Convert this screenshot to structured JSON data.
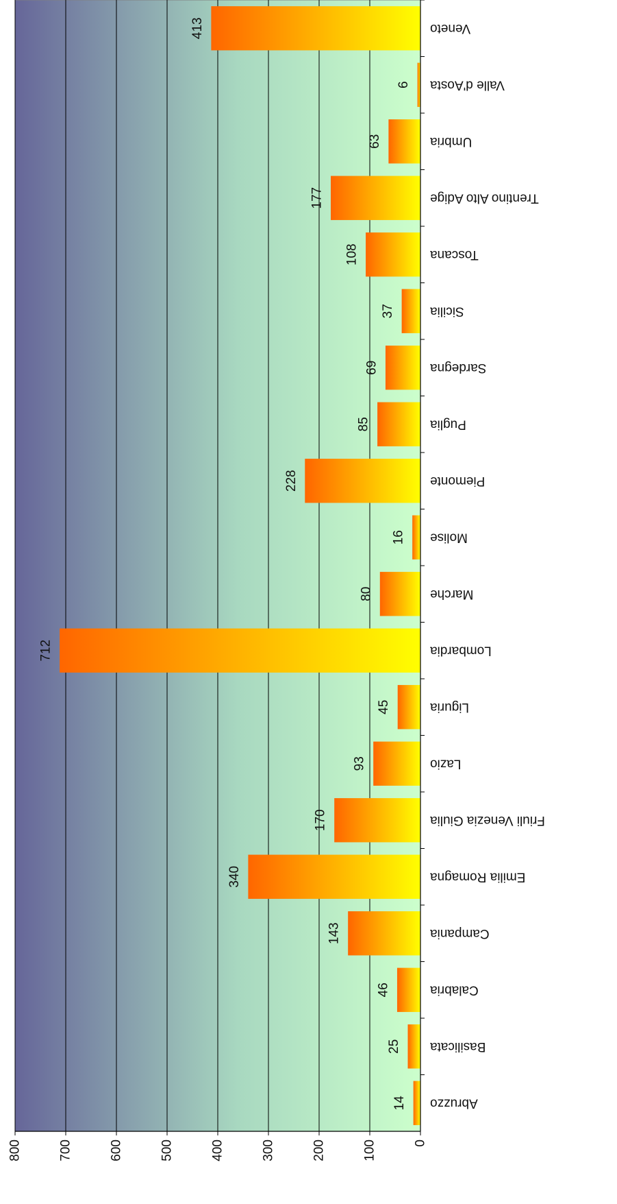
{
  "chart_data": {
    "type": "bar",
    "orientation": "rotated-180-vertical-labels",
    "title": "",
    "xlabel": "",
    "ylabel": "",
    "ylim": [
      0,
      800
    ],
    "yticks": [
      0,
      100,
      200,
      300,
      400,
      500,
      600,
      700,
      800
    ],
    "grid": true,
    "legend": "none",
    "categories": [
      "Abruzzo",
      "Basilicata",
      "Calabria",
      "Campania",
      "Emilia Romagna",
      "Friuli Venezia Giulia",
      "Lazio",
      "Liguria",
      "Lombardia",
      "Marche",
      "Molise",
      "Piemonte",
      "Puglia",
      "Sardegna",
      "Sicilia",
      "Toscana",
      "Trentino Alto Adige",
      "Umbria",
      "Valle d'Aosta",
      "Veneto"
    ],
    "values": [
      14,
      25,
      46,
      143,
      340,
      170,
      93,
      45,
      712,
      80,
      16,
      228,
      85,
      69,
      37,
      108,
      177,
      63,
      6,
      413
    ],
    "colors": {
      "background_top": "#666699",
      "background_bottom": "#ccffcc",
      "bar_start": "#ff6600",
      "bar_end": "#ffff00",
      "gridline": "#000000"
    }
  }
}
